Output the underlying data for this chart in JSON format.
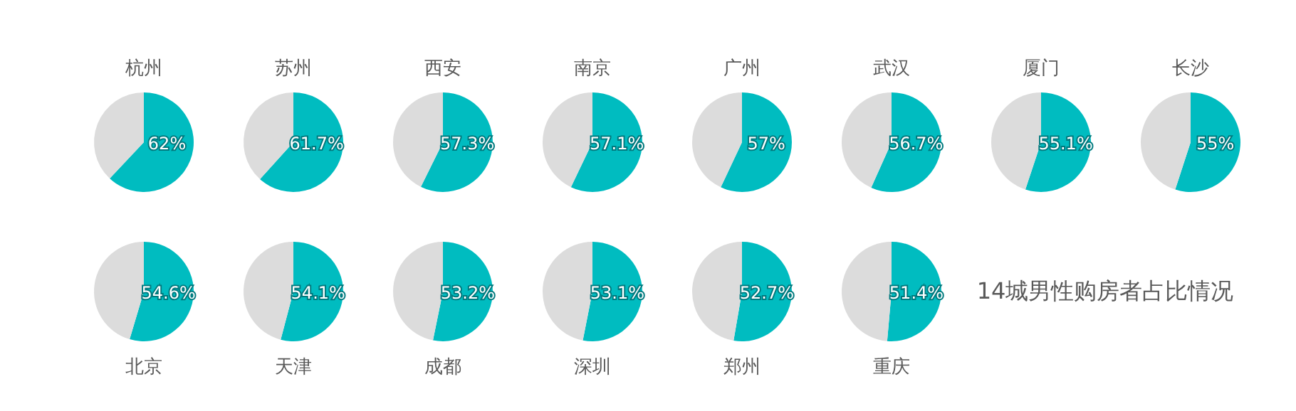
{
  "chart_data": [
    {
      "type": "pie",
      "title": "杭州",
      "categories": [
        null,
        null
      ],
      "values": [
        62,
        38
      ],
      "colors": [
        "#00bcc0",
        "#dcdcdc"
      ],
      "value_labels": [
        "62%",
        null
      ]
    },
    {
      "type": "pie",
      "title": "苏州",
      "categories": [
        null,
        null
      ],
      "values": [
        61.7,
        38.3
      ],
      "colors": [
        "#00bcc0",
        "#dcdcdc"
      ],
      "value_labels": [
        "61.7%",
        null
      ]
    },
    {
      "type": "pie",
      "title": "西安",
      "categories": [
        null,
        null
      ],
      "values": [
        57.3,
        42.7
      ],
      "colors": [
        "#00bcc0",
        "#dcdcdc"
      ],
      "value_labels": [
        "57.3%",
        null
      ]
    },
    {
      "type": "pie",
      "title": "南京",
      "categories": [
        null,
        null
      ],
      "values": [
        57.1,
        42.9
      ],
      "colors": [
        "#00bcc0",
        "#dcdcdc"
      ],
      "value_labels": [
        "57.1%",
        null
      ]
    },
    {
      "type": "pie",
      "title": "广州",
      "categories": [
        null,
        null
      ],
      "values": [
        57,
        43
      ],
      "colors": [
        "#00bcc0",
        "#dcdcdc"
      ],
      "value_labels": [
        "57%",
        null
      ]
    },
    {
      "type": "pie",
      "title": "武汉",
      "categories": [
        null,
        null
      ],
      "values": [
        56.7,
        43.3
      ],
      "colors": [
        "#00bcc0",
        "#dcdcdc"
      ],
      "value_labels": [
        "56.7%",
        null
      ]
    },
    {
      "type": "pie",
      "title": "厦门",
      "categories": [
        null,
        null
      ],
      "values": [
        55.1,
        44.9
      ],
      "colors": [
        "#00bcc0",
        "#dcdcdc"
      ],
      "value_labels": [
        "55.1%",
        null
      ]
    },
    {
      "type": "pie",
      "title": "长沙",
      "categories": [
        null,
        null
      ],
      "values": [
        55,
        45
      ],
      "colors": [
        "#00bcc0",
        "#dcdcdc"
      ],
      "value_labels": [
        "55%",
        null
      ]
    },
    {
      "type": "pie",
      "title": "北京",
      "categories": [
        null,
        null
      ],
      "values": [
        54.6,
        45.4
      ],
      "colors": [
        "#00bcc0",
        "#dcdcdc"
      ],
      "value_labels": [
        "54.6%",
        null
      ]
    },
    {
      "type": "pie",
      "title": "天津",
      "categories": [
        null,
        null
      ],
      "values": [
        54.1,
        45.9
      ],
      "colors": [
        "#00bcc0",
        "#dcdcdc"
      ],
      "value_labels": [
        "54.1%",
        null
      ]
    },
    {
      "type": "pie",
      "title": "成都",
      "categories": [
        null,
        null
      ],
      "values": [
        53.2,
        46.8
      ],
      "colors": [
        "#00bcc0",
        "#dcdcdc"
      ],
      "value_labels": [
        "53.2%",
        null
      ]
    },
    {
      "type": "pie",
      "title": "深圳",
      "categories": [
        null,
        null
      ],
      "values": [
        53.1,
        46.9
      ],
      "colors": [
        "#00bcc0",
        "#dcdcdc"
      ],
      "value_labels": [
        "53.1%",
        null
      ]
    },
    {
      "type": "pie",
      "title": "郑州",
      "categories": [
        null,
        null
      ],
      "values": [
        52.7,
        47.3
      ],
      "colors": [
        "#00bcc0",
        "#dcdcdc"
      ],
      "value_labels": [
        "52.7%",
        null
      ]
    },
    {
      "type": "pie",
      "title": "重庆",
      "categories": [
        null,
        null
      ],
      "values": [
        51.4,
        48.6
      ],
      "colors": [
        "#00bcc0",
        "#dcdcdc"
      ],
      "value_labels": [
        "51.4%",
        null
      ]
    },
    {
      "type": "other",
      "title": "14城男性购房者占比情况"
    }
  ]
}
